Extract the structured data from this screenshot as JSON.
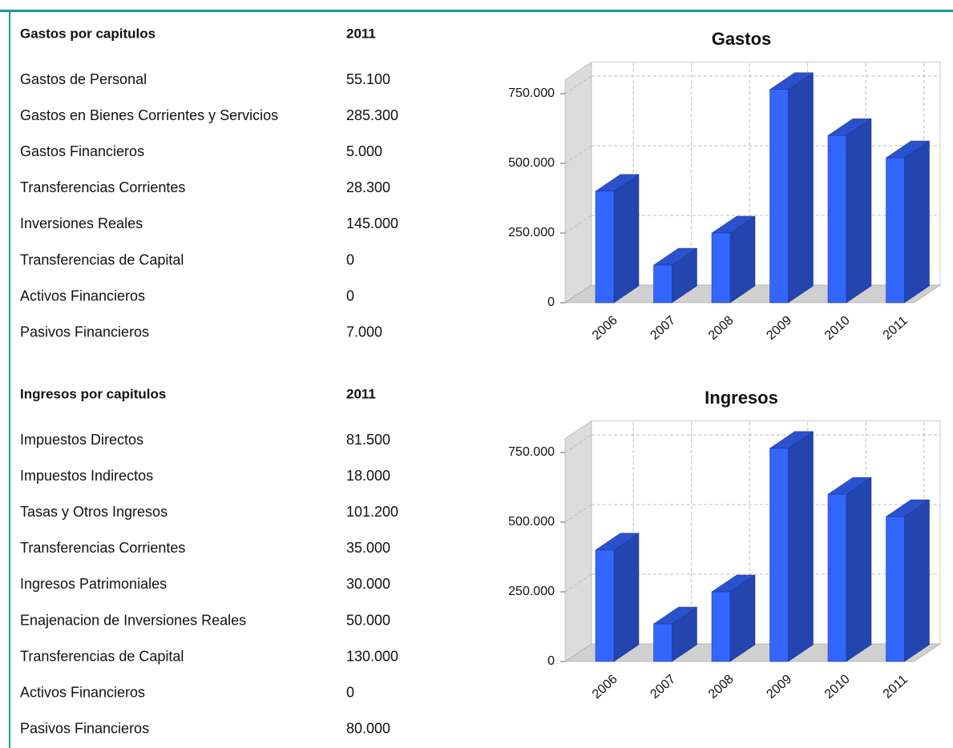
{
  "tables": [
    {
      "header": [
        "Gastos por capitulos",
        "2011"
      ],
      "rows": [
        [
          "Gastos de Personal",
          "55.100"
        ],
        [
          "Gastos en Bienes Corrientes y Servicios",
          "285.300"
        ],
        [
          "Gastos Financieros",
          "5.000"
        ],
        [
          "Transferencias Corrientes",
          "28.300"
        ],
        [
          "Inversiones Reales",
          "145.000"
        ],
        [
          "Transferencias de Capital",
          "0"
        ],
        [
          "Activos Financieros",
          "0"
        ],
        [
          "Pasivos Financieros",
          "7.000"
        ]
      ]
    },
    {
      "header": [
        "Ingresos por capitulos",
        "2011"
      ],
      "rows": [
        [
          "Impuestos Directos",
          "81.500"
        ],
        [
          "Impuestos Indirectos",
          "18.000"
        ],
        [
          "Tasas y Otros Ingresos",
          "101.200"
        ],
        [
          "Transferencias Corrientes",
          "35.000"
        ],
        [
          "Ingresos Patrimoniales",
          "30.000"
        ],
        [
          "Enajenacion de Inversiones Reales",
          "50.000"
        ],
        [
          "Transferencias de Capital",
          "130.000"
        ],
        [
          "Activos Financieros",
          "0"
        ],
        [
          "Pasivos Financieros",
          "80.000"
        ]
      ]
    }
  ],
  "chart_data": [
    {
      "type": "bar3d",
      "title": "Gastos",
      "categories": [
        "2006",
        "2007",
        "2008",
        "2009",
        "2010",
        "2011"
      ],
      "values": [
        400000,
        135000,
        250000,
        765000,
        600000,
        520000
      ],
      "color": "#3366ff",
      "ylim": [
        0,
        800000
      ],
      "yticks": [
        0,
        {
          "value": 250000,
          "label": "250.000"
        },
        {
          "value": 500000,
          "label": "500.000"
        },
        {
          "value": 750000,
          "label": "750.000"
        }
      ],
      "grid": true
    },
    {
      "type": "bar3d",
      "title": "Ingresos",
      "categories": [
        "2006",
        "2007",
        "2008",
        "2009",
        "2010",
        "2011"
      ],
      "values": [
        400000,
        135000,
        250000,
        765000,
        600000,
        520000
      ],
      "color": "#3366ff",
      "ylim": [
        0,
        800000
      ],
      "yticks": [
        0,
        {
          "value": 250000,
          "label": "250.000"
        },
        {
          "value": 500000,
          "label": "500.000"
        },
        {
          "value": 750000,
          "label": "750.000"
        }
      ],
      "grid": true
    }
  ]
}
